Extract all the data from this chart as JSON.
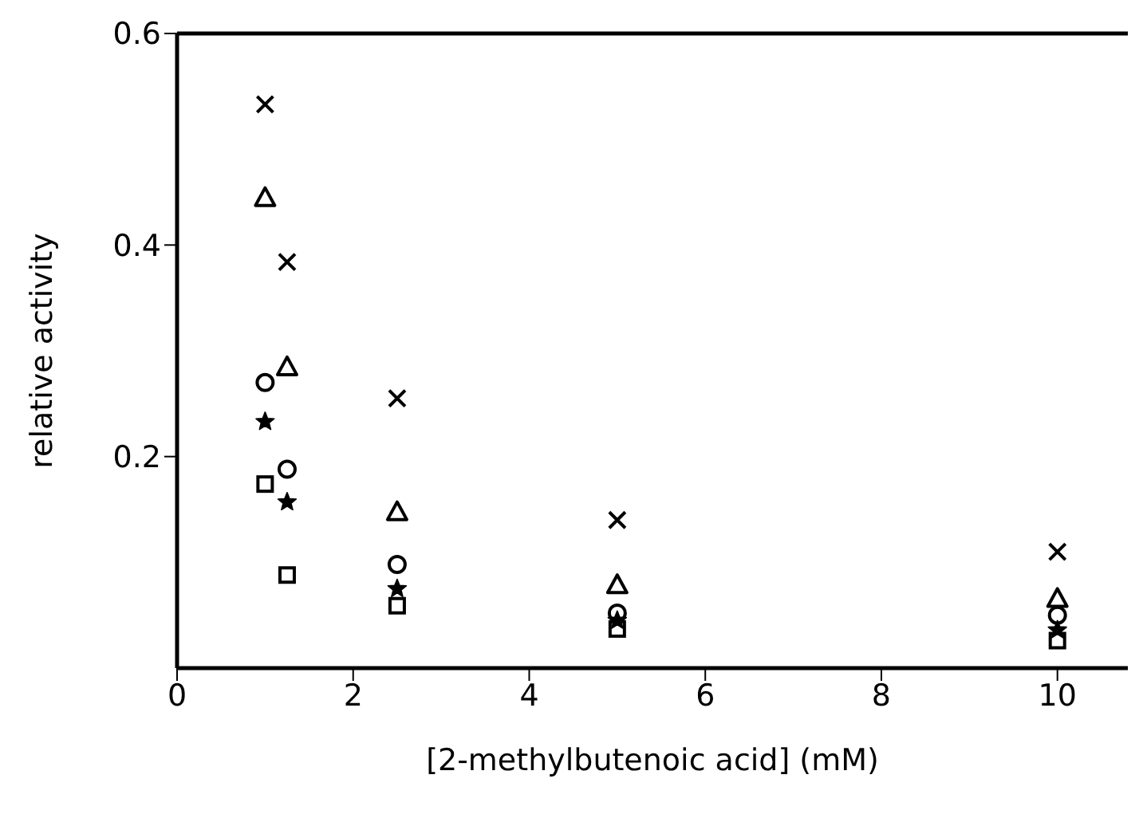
{
  "chart_data": {
    "type": "scatter",
    "xlabel": "[2-methylbutenoic acid] (mM)",
    "ylabel": "relative activity",
    "xlim": [
      0,
      10.8
    ],
    "xticks": [
      0,
      2,
      4,
      6,
      8,
      10
    ],
    "ylim": [
      0,
      0.6
    ],
    "yticks": [
      0.2,
      0.4,
      0.6
    ],
    "x": [
      1,
      1.25,
      2.5,
      5,
      10
    ],
    "series": [
      {
        "color": "#000000",
        "marker": "cross",
        "values": [
          0.533,
          0.384,
          0.255,
          0.14,
          0.11
        ]
      },
      {
        "color": "#000000",
        "marker": "triangle",
        "values": [
          0.445,
          0.285,
          0.148,
          0.079,
          0.066
        ]
      },
      {
        "color": "#000000",
        "marker": "circle",
        "values": [
          0.27,
          0.188,
          0.098,
          0.052,
          0.05
        ]
      },
      {
        "color": "#000000",
        "marker": "star",
        "values": [
          0.233,
          0.157,
          0.075,
          0.045,
          0.036
        ]
      },
      {
        "color": "#000000",
        "marker": "square",
        "values": [
          0.174,
          0.088,
          0.059,
          0.037,
          0.026
        ]
      }
    ]
  }
}
